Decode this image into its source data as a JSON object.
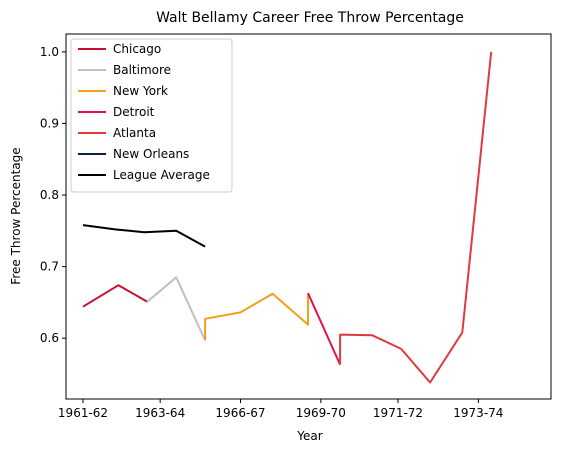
{
  "chart_data": {
    "type": "line",
    "title": "Walt Bellamy Career Free Throw Percentage",
    "xlabel": "Year",
    "ylabel": "Free Throw Percentage",
    "xlim": [
      1961,
      1975
    ],
    "ylim": [
      0.515,
      1.025
    ],
    "x_ticks": [
      {
        "x": 1961,
        "label": "1961-62"
      },
      {
        "x": 1963.4,
        "label": "1963-64"
      },
      {
        "x": 1965.9,
        "label": "1966-67"
      },
      {
        "x": 1968.4,
        "label": "1969-70"
      },
      {
        "x": 1970.8,
        "label": "1971-72"
      },
      {
        "x": 1973.3,
        "label": "1973-74"
      }
    ],
    "y_ticks": [
      0.6,
      0.7,
      0.8,
      0.9,
      1.0
    ],
    "y_tick_labels": [
      "0.6",
      "0.7",
      "0.8",
      "0.9",
      "1.0"
    ],
    "legend_position": "upper-left",
    "series": [
      {
        "name": "Chicago",
        "color": "#c8102e",
        "points": [
          [
            1961,
            0.644
          ],
          [
            1962.1,
            0.674
          ],
          [
            1963.0,
            0.651
          ]
        ]
      },
      {
        "name": "Baltimore",
        "color": "#c0c0c0",
        "points": [
          [
            1963.0,
            0.651
          ],
          [
            1963.9,
            0.685
          ],
          [
            1964.8,
            0.597
          ]
        ]
      },
      {
        "name": "New York",
        "color": "#f59e1e",
        "points": [
          [
            1964.8,
            0.597
          ],
          [
            1964.8,
            0.627
          ],
          [
            1965.9,
            0.636
          ],
          [
            1966.9,
            0.662
          ],
          [
            1968.0,
            0.619
          ],
          [
            1968.0,
            0.662
          ]
        ]
      },
      {
        "name": "Detroit",
        "color": "#e0114b",
        "points": [
          [
            1968.0,
            0.663
          ],
          [
            1969.0,
            0.563
          ]
        ]
      },
      {
        "name": "Atlanta",
        "color": "#e03a3e",
        "points": [
          [
            1969.0,
            0.563
          ],
          [
            1969.0,
            0.605
          ],
          [
            1970.0,
            0.604
          ],
          [
            1970.9,
            0.585
          ],
          [
            1971.8,
            0.538
          ],
          [
            1972.8,
            0.608
          ],
          [
            1973.7,
            1.0
          ]
        ]
      },
      {
        "name": "New Orleans",
        "color": "#0c2340",
        "points": []
      },
      {
        "name": "League Average",
        "color": "#000000",
        "points": [
          [
            1961,
            0.758
          ],
          [
            1962.0,
            0.752
          ],
          [
            1962.9,
            0.748
          ],
          [
            1963.9,
            0.75
          ],
          [
            1964.8,
            0.728
          ]
        ]
      }
    ]
  }
}
